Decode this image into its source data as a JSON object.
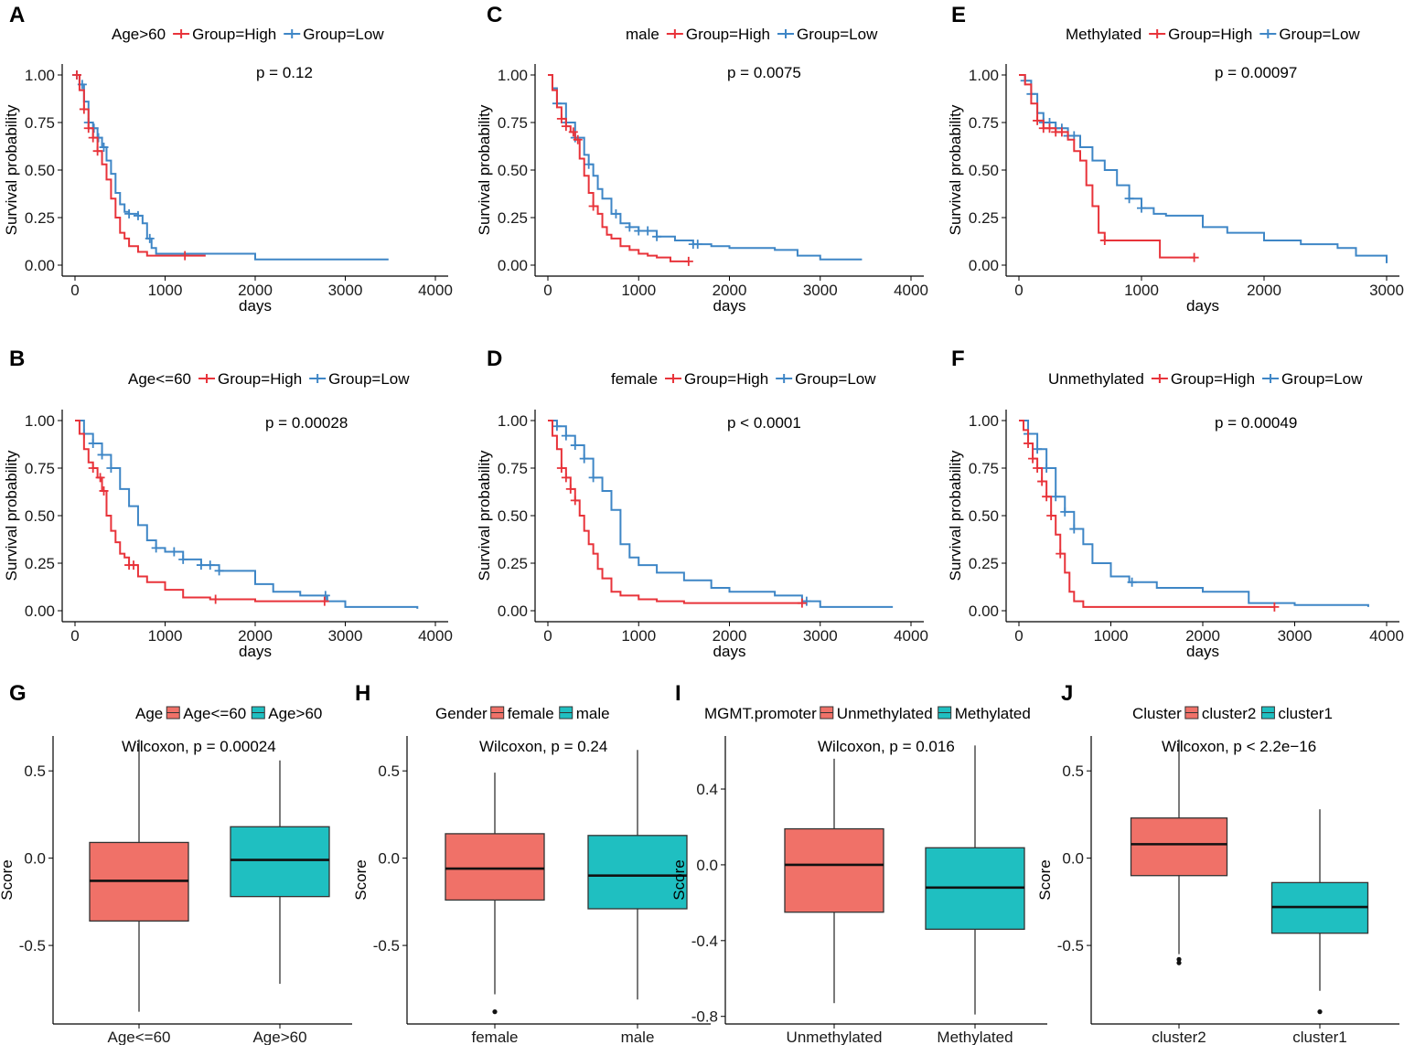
{
  "figure": {
    "colors": {
      "high": "#e8333a",
      "low": "#3e86c6",
      "box1": "#f07168",
      "box2": "#1fbfc1"
    }
  },
  "chart_data": [
    {
      "panel": "A",
      "type": "line",
      "subtype": "kaplan-meier",
      "legend": {
        "title": "Age>60",
        "items": [
          "Group=High",
          "Group=Low"
        ]
      },
      "pvalue": "p = 0.12",
      "xlabel": "days",
      "ylabel": "Survival probability",
      "xlim": [
        0,
        4000
      ],
      "ylim": [
        0,
        1
      ],
      "xticks": [
        0,
        1000,
        2000,
        3000,
        4000
      ],
      "yticks": [
        "0.00",
        "0.25",
        "0.50",
        "0.75",
        "1.00"
      ],
      "series": [
        {
          "name": "Group=High",
          "x": [
            0,
            50,
            100,
            150,
            200,
            250,
            300,
            350,
            400,
            450,
            500,
            550,
            600,
            700,
            800,
            1000,
            1200,
            1450
          ],
          "y": [
            1.0,
            0.92,
            0.82,
            0.72,
            0.67,
            0.6,
            0.53,
            0.45,
            0.35,
            0.25,
            0.17,
            0.14,
            0.1,
            0.07,
            0.05,
            0.05,
            0.05,
            0.05
          ],
          "censor_x": [
            20,
            100,
            150,
            200,
            250,
            1220
          ]
        },
        {
          "name": "Group=Low",
          "x": [
            0,
            50,
            100,
            150,
            200,
            250,
            300,
            350,
            400,
            450,
            500,
            550,
            600,
            650,
            700,
            750,
            800,
            850,
            900,
            1000,
            1500,
            2000,
            3000,
            3480
          ],
          "y": [
            1.0,
            0.95,
            0.86,
            0.75,
            0.72,
            0.67,
            0.62,
            0.55,
            0.48,
            0.38,
            0.32,
            0.28,
            0.27,
            0.27,
            0.26,
            0.22,
            0.14,
            0.09,
            0.06,
            0.06,
            0.06,
            0.03,
            0.03,
            0.03
          ],
          "censor_x": [
            20,
            80,
            150,
            210,
            260,
            320,
            600,
            700,
            830
          ]
        }
      ]
    },
    {
      "panel": "C",
      "type": "line",
      "subtype": "kaplan-meier",
      "legend": {
        "title": "male",
        "items": [
          "Group=High",
          "Group=Low"
        ]
      },
      "pvalue": "p = 0.0075",
      "xlabel": "days",
      "ylabel": "Survival probability",
      "xlim": [
        0,
        4000
      ],
      "ylim": [
        0,
        1
      ],
      "xticks": [
        0,
        1000,
        2000,
        3000,
        4000
      ],
      "yticks": [
        "0.00",
        "0.25",
        "0.50",
        "0.75",
        "1.00"
      ],
      "series": [
        {
          "name": "Group=High",
          "x": [
            0,
            50,
            100,
            150,
            200,
            250,
            300,
            350,
            400,
            450,
            500,
            550,
            600,
            650,
            700,
            800,
            900,
            1000,
            1100,
            1200,
            1350,
            1550
          ],
          "y": [
            1.0,
            0.92,
            0.83,
            0.77,
            0.73,
            0.7,
            0.66,
            0.56,
            0.47,
            0.38,
            0.31,
            0.27,
            0.2,
            0.16,
            0.14,
            0.1,
            0.08,
            0.06,
            0.05,
            0.04,
            0.02,
            0.02
          ],
          "censor_x": [
            150,
            200,
            280,
            330,
            500,
            1550
          ]
        },
        {
          "name": "Group=Low",
          "x": [
            0,
            50,
            100,
            200,
            300,
            400,
            450,
            500,
            550,
            600,
            700,
            800,
            900,
            1000,
            1200,
            1400,
            1600,
            1800,
            2000,
            2500,
            2750,
            3000,
            3460
          ],
          "y": [
            1.0,
            0.93,
            0.85,
            0.75,
            0.67,
            0.58,
            0.53,
            0.47,
            0.4,
            0.35,
            0.27,
            0.22,
            0.2,
            0.18,
            0.15,
            0.13,
            0.11,
            0.1,
            0.09,
            0.08,
            0.05,
            0.03,
            0.03
          ],
          "censor_x": [
            100,
            200,
            300,
            450,
            750,
            900,
            1000,
            1100,
            1200,
            1600,
            1650
          ]
        }
      ]
    },
    {
      "panel": "E",
      "type": "line",
      "subtype": "kaplan-meier",
      "legend": {
        "title": "Methylated",
        "items": [
          "Group=High",
          "Group=Low"
        ]
      },
      "pvalue": "p = 0.00097",
      "xlabel": "days",
      "ylabel": "Survival probability",
      "xlim": [
        0,
        3000
      ],
      "ylim": [
        0,
        1
      ],
      "xticks": [
        0,
        1000,
        2000,
        3000
      ],
      "yticks": [
        "0.00",
        "0.25",
        "0.50",
        "0.75",
        "1.00"
      ],
      "series": [
        {
          "name": "Group=High",
          "x": [
            0,
            50,
            100,
            150,
            200,
            300,
            400,
            450,
            500,
            550,
            600,
            650,
            700,
            1000,
            1150,
            1430
          ],
          "y": [
            1.0,
            0.95,
            0.85,
            0.76,
            0.72,
            0.7,
            0.66,
            0.6,
            0.55,
            0.42,
            0.31,
            0.17,
            0.13,
            0.13,
            0.04,
            0.04
          ],
          "censor_x": [
            150,
            200,
            250,
            300,
            350,
            700,
            1430
          ]
        },
        {
          "name": "Group=Low",
          "x": [
            0,
            50,
            100,
            150,
            200,
            300,
            400,
            500,
            600,
            700,
            800,
            900,
            1000,
            1100,
            1200,
            1500,
            1700,
            2000,
            2300,
            2600,
            2750,
            3000
          ],
          "y": [
            1.0,
            0.97,
            0.9,
            0.8,
            0.75,
            0.72,
            0.68,
            0.62,
            0.55,
            0.5,
            0.42,
            0.35,
            0.3,
            0.27,
            0.26,
            0.2,
            0.17,
            0.13,
            0.11,
            0.09,
            0.05,
            0.01
          ],
          "censor_x": [
            50,
            100,
            200,
            250,
            300,
            350,
            400,
            450,
            900,
            1000
          ]
        }
      ]
    },
    {
      "panel": "B",
      "type": "line",
      "subtype": "kaplan-meier",
      "legend": {
        "title": "Age<=60",
        "items": [
          "Group=High",
          "Group=Low"
        ]
      },
      "pvalue": "p = 0.00028",
      "xlabel": "days",
      "ylabel": "Survival probability",
      "xlim": [
        0,
        4000
      ],
      "ylim": [
        0,
        1
      ],
      "xticks": [
        0,
        1000,
        2000,
        3000,
        4000
      ],
      "yticks": [
        "0.00",
        "0.25",
        "0.50",
        "0.75",
        "1.00"
      ],
      "series": [
        {
          "name": "Group=High",
          "x": [
            0,
            50,
            100,
            150,
            200,
            250,
            300,
            350,
            400,
            450,
            500,
            550,
            600,
            700,
            800,
            1000,
            1200,
            1500,
            2000,
            2800
          ],
          "y": [
            1.0,
            0.93,
            0.85,
            0.78,
            0.75,
            0.7,
            0.63,
            0.5,
            0.42,
            0.36,
            0.3,
            0.28,
            0.24,
            0.18,
            0.15,
            0.11,
            0.07,
            0.06,
            0.05,
            0.05
          ],
          "censor_x": [
            200,
            280,
            320,
            600,
            650,
            1560,
            2770
          ]
        },
        {
          "name": "Group=Low",
          "x": [
            0,
            100,
            200,
            300,
            400,
            500,
            600,
            700,
            800,
            900,
            1000,
            1200,
            1400,
            1600,
            2000,
            2200,
            2500,
            2800,
            3000,
            3800
          ],
          "y": [
            1.0,
            0.93,
            0.88,
            0.82,
            0.75,
            0.64,
            0.55,
            0.45,
            0.37,
            0.33,
            0.31,
            0.27,
            0.24,
            0.21,
            0.14,
            0.1,
            0.08,
            0.05,
            0.02,
            0.01
          ],
          "censor_x": [
            100,
            200,
            300,
            400,
            900,
            1100,
            1200,
            1400,
            1500,
            1600,
            2780
          ]
        }
      ]
    },
    {
      "panel": "D",
      "type": "line",
      "subtype": "kaplan-meier",
      "legend": {
        "title": "female",
        "items": [
          "Group=High",
          "Group=Low"
        ]
      },
      "pvalue": "p < 0.0001",
      "xlabel": "days",
      "ylabel": "Survival probability",
      "xlim": [
        0,
        4000
      ],
      "ylim": [
        0,
        1
      ],
      "xticks": [
        0,
        1000,
        2000,
        3000,
        4000
      ],
      "yticks": [
        "0.00",
        "0.25",
        "0.50",
        "0.75",
        "1.00"
      ],
      "series": [
        {
          "name": "Group=High",
          "x": [
            0,
            50,
            100,
            150,
            200,
            250,
            300,
            350,
            400,
            450,
            500,
            550,
            600,
            700,
            800,
            1000,
            1200,
            1500,
            2000,
            2800
          ],
          "y": [
            1.0,
            0.92,
            0.85,
            0.75,
            0.7,
            0.64,
            0.58,
            0.5,
            0.42,
            0.35,
            0.3,
            0.22,
            0.17,
            0.1,
            0.08,
            0.06,
            0.05,
            0.04,
            0.04,
            0.04
          ],
          "censor_x": [
            150,
            200,
            250,
            300,
            2800
          ]
        },
        {
          "name": "Group=Low",
          "x": [
            0,
            100,
            200,
            300,
            400,
            500,
            600,
            700,
            800,
            900,
            1000,
            1200,
            1500,
            1800,
            2000,
            2500,
            2800,
            3000,
            3800
          ],
          "y": [
            1.0,
            0.97,
            0.92,
            0.87,
            0.8,
            0.7,
            0.63,
            0.53,
            0.35,
            0.28,
            0.24,
            0.2,
            0.16,
            0.12,
            0.1,
            0.08,
            0.05,
            0.02,
            0.02
          ],
          "censor_x": [
            100,
            200,
            300,
            400,
            500,
            2850
          ]
        }
      ]
    },
    {
      "panel": "F",
      "type": "line",
      "subtype": "kaplan-meier",
      "legend": {
        "title": "Unmethylated",
        "items": [
          "Group=High",
          "Group=Low"
        ]
      },
      "pvalue": "p = 0.00049",
      "xlabel": "days",
      "ylabel": "Survival probability",
      "xlim": [
        0,
        4000
      ],
      "ylim": [
        0,
        1
      ],
      "xticks": [
        0,
        1000,
        2000,
        3000,
        4000
      ],
      "yticks": [
        "0.00",
        "0.25",
        "0.50",
        "0.75",
        "1.00"
      ],
      "series": [
        {
          "name": "Group=High",
          "x": [
            0,
            50,
            100,
            150,
            200,
            250,
            300,
            350,
            400,
            450,
            500,
            550,
            600,
            700,
            800,
            1000,
            1500,
            2000,
            2780
          ],
          "y": [
            1.0,
            0.95,
            0.88,
            0.8,
            0.75,
            0.68,
            0.6,
            0.5,
            0.4,
            0.3,
            0.2,
            0.1,
            0.05,
            0.02,
            0.02,
            0.02,
            0.02,
            0.02,
            0.02
          ],
          "censor_x": [
            100,
            150,
            200,
            250,
            300,
            350,
            450,
            2780
          ]
        },
        {
          "name": "Group=Low",
          "x": [
            0,
            100,
            200,
            300,
            400,
            500,
            600,
            700,
            800,
            1000,
            1200,
            1500,
            2000,
            2500,
            3000,
            3500,
            3800
          ],
          "y": [
            1.0,
            0.93,
            0.85,
            0.75,
            0.6,
            0.52,
            0.43,
            0.35,
            0.25,
            0.18,
            0.15,
            0.12,
            0.1,
            0.04,
            0.03,
            0.03,
            0.02
          ],
          "censor_x": [
            100,
            200,
            300,
            400,
            500,
            600,
            1230
          ]
        }
      ]
    },
    {
      "panel": "G",
      "type": "box",
      "legend": {
        "title": "Age",
        "items": [
          "Age<=60",
          "Age>60"
        ]
      },
      "pvalue": "Wilcoxon, p = 0.00024",
      "ylabel": "Score",
      "ylim": [
        -0.95,
        0.7
      ],
      "yticks": [
        "-0.5",
        "0.0",
        "0.5"
      ],
      "categories": [
        "Age<=60",
        "Age>60"
      ],
      "boxes": [
        {
          "category": "Age<=60",
          "whisker_low": -0.88,
          "q1": -0.36,
          "median": -0.13,
          "q3": 0.09,
          "whisker_high": 0.68,
          "outliers": []
        },
        {
          "category": "Age>60",
          "whisker_low": -0.72,
          "q1": -0.22,
          "median": -0.01,
          "q3": 0.18,
          "whisker_high": 0.56,
          "outliers": []
        }
      ]
    },
    {
      "panel": "H",
      "type": "box",
      "legend": {
        "title": "Gender",
        "items": [
          "female",
          "male"
        ]
      },
      "pvalue": "Wilcoxon, p = 0.24",
      "ylabel": "Score",
      "ylim": [
        -0.95,
        0.7
      ],
      "yticks": [
        "-0.5",
        "0.0",
        "0.5"
      ],
      "categories": [
        "female",
        "male"
      ],
      "boxes": [
        {
          "category": "female",
          "whisker_low": -0.78,
          "q1": -0.24,
          "median": -0.06,
          "q3": 0.14,
          "whisker_high": 0.49,
          "outliers": [
            -0.88
          ]
        },
        {
          "category": "male",
          "whisker_low": -0.81,
          "q1": -0.29,
          "median": -0.1,
          "q3": 0.13,
          "whisker_high": 0.62,
          "outliers": []
        }
      ]
    },
    {
      "panel": "I",
      "type": "box",
      "legend": {
        "title": "MGMT.promoter",
        "items": [
          "Unmethylated",
          "Methylated"
        ]
      },
      "pvalue": "Wilcoxon, p = 0.016",
      "ylabel": "Score",
      "ylim": [
        -0.84,
        0.68
      ],
      "yticks": [
        "-0.8",
        "-0.4",
        "0.0",
        "0.4"
      ],
      "categories": [
        "Unmethylated",
        "Methylated"
      ],
      "boxes": [
        {
          "category": "Unmethylated",
          "whisker_low": -0.73,
          "q1": -0.25,
          "median": 0.0,
          "q3": 0.19,
          "whisker_high": 0.56,
          "outliers": []
        },
        {
          "category": "Methylated",
          "whisker_low": -0.79,
          "q1": -0.34,
          "median": -0.12,
          "q3": 0.09,
          "whisker_high": 0.63,
          "outliers": []
        }
      ]
    },
    {
      "panel": "J",
      "type": "box",
      "legend": {
        "title": "Cluster",
        "items": [
          "cluster2",
          "cluster1"
        ]
      },
      "pvalue": "Wilcoxon, p < 2.2e−16",
      "ylabel": "Score",
      "ylim": [
        -0.95,
        0.7
      ],
      "yticks": [
        "-0.5",
        "0.0",
        "0.5"
      ],
      "categories": [
        "cluster2",
        "cluster1"
      ],
      "boxes": [
        {
          "category": "cluster2",
          "whisker_low": -0.55,
          "q1": -0.1,
          "median": 0.08,
          "q3": 0.23,
          "whisker_high": 0.68,
          "outliers": [
            -0.6,
            -0.58
          ]
        },
        {
          "category": "cluster1",
          "whisker_low": -0.76,
          "q1": -0.43,
          "median": -0.28,
          "q3": -0.14,
          "whisker_high": 0.28,
          "outliers": [
            -0.88
          ]
        }
      ]
    }
  ]
}
